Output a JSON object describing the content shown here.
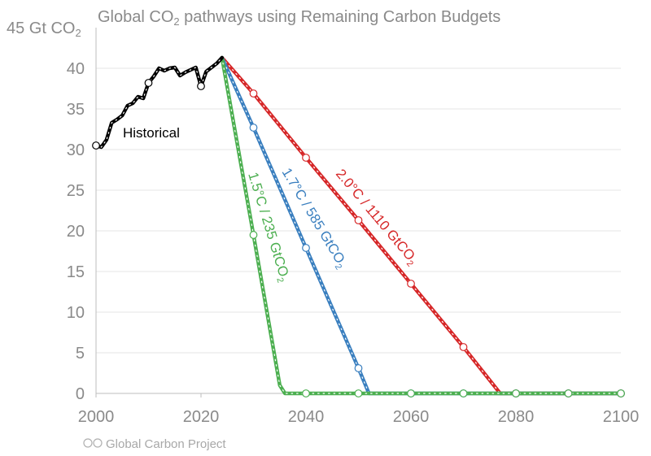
{
  "chart_data": {
    "type": "line",
    "title_main": "Global CO",
    "title_sub": "2",
    "title_rest": " pathways using Remaining Carbon Budgets",
    "ylabel_main": "45 Gt CO",
    "ylabel_sub": "2",
    "credit": "Global Carbon Project",
    "xlim": [
      2000,
      2100
    ],
    "ylim": [
      0,
      45
    ],
    "x_ticks": [
      "2000",
      "2020",
      "2040",
      "2060",
      "2080",
      "2100"
    ],
    "x_tick_values": [
      2000,
      2020,
      2040,
      2060,
      2080,
      2100
    ],
    "y_ticks": [
      "0",
      "5",
      "10",
      "15",
      "20",
      "25",
      "30",
      "35",
      "40"
    ],
    "y_tick_values": [
      0,
      5,
      10,
      15,
      20,
      25,
      30,
      35,
      40
    ],
    "grid": true,
    "series": [
      {
        "name": "Historical",
        "color": "#000000",
        "x": [
          2000,
          2001,
          2002,
          2003,
          2004,
          2005,
          2006,
          2007,
          2008,
          2009,
          2010,
          2011,
          2012,
          2013,
          2014,
          2015,
          2016,
          2017,
          2018,
          2019,
          2020,
          2021,
          2022,
          2023,
          2024
        ],
        "y": [
          30.5,
          30.3,
          31.2,
          33.3,
          33.7,
          34.2,
          35.4,
          35.7,
          36.5,
          36.3,
          38.2,
          39.0,
          40.0,
          39.7,
          40.0,
          40.1,
          39.1,
          39.5,
          39.8,
          40.1,
          37.8,
          39.6,
          40.1,
          40.6,
          41.3
        ],
        "markers_x": [
          2000,
          2010,
          2020
        ],
        "markers_y": [
          30.5,
          38.2,
          37.8
        ]
      },
      {
        "name": "1.5°C / 235 GtCO",
        "name_sub": "2",
        "color": "#4caf50",
        "x": [
          2024,
          2030,
          2035,
          2036,
          2100
        ],
        "y": [
          41.3,
          19.5,
          1.0,
          0,
          0
        ],
        "markers_x": [
          2030,
          2040,
          2050,
          2060,
          2070,
          2080,
          2090,
          2100
        ],
        "markers_y": [
          19.5,
          0,
          0,
          0,
          0,
          0,
          0,
          0
        ]
      },
      {
        "name": "1.7°C / 585 GtCO",
        "name_sub": "2",
        "color": "#3a7fbf",
        "x": [
          2024,
          2030,
          2040,
          2050,
          2052,
          2100
        ],
        "y": [
          41.3,
          32.7,
          17.9,
          3.1,
          0,
          0
        ],
        "markers_x": [
          2030,
          2040,
          2050,
          2060,
          2070,
          2080,
          2090,
          2100
        ],
        "markers_y": [
          32.7,
          17.9,
          3.1,
          0,
          0,
          0,
          0,
          0
        ]
      },
      {
        "name": "2.0°C / 1110 GtCO",
        "name_sub": "2",
        "color": "#d62728",
        "x": [
          2024,
          2030,
          2040,
          2050,
          2060,
          2070,
          2077,
          2100
        ],
        "y": [
          41.3,
          36.9,
          29.0,
          21.3,
          13.5,
          5.7,
          0,
          0
        ],
        "markers_x": [
          2030,
          2040,
          2050,
          2060,
          2070,
          2080,
          2090,
          2100
        ],
        "markers_y": [
          36.9,
          29.0,
          21.3,
          13.5,
          5.7,
          0,
          0,
          0
        ]
      }
    ]
  }
}
